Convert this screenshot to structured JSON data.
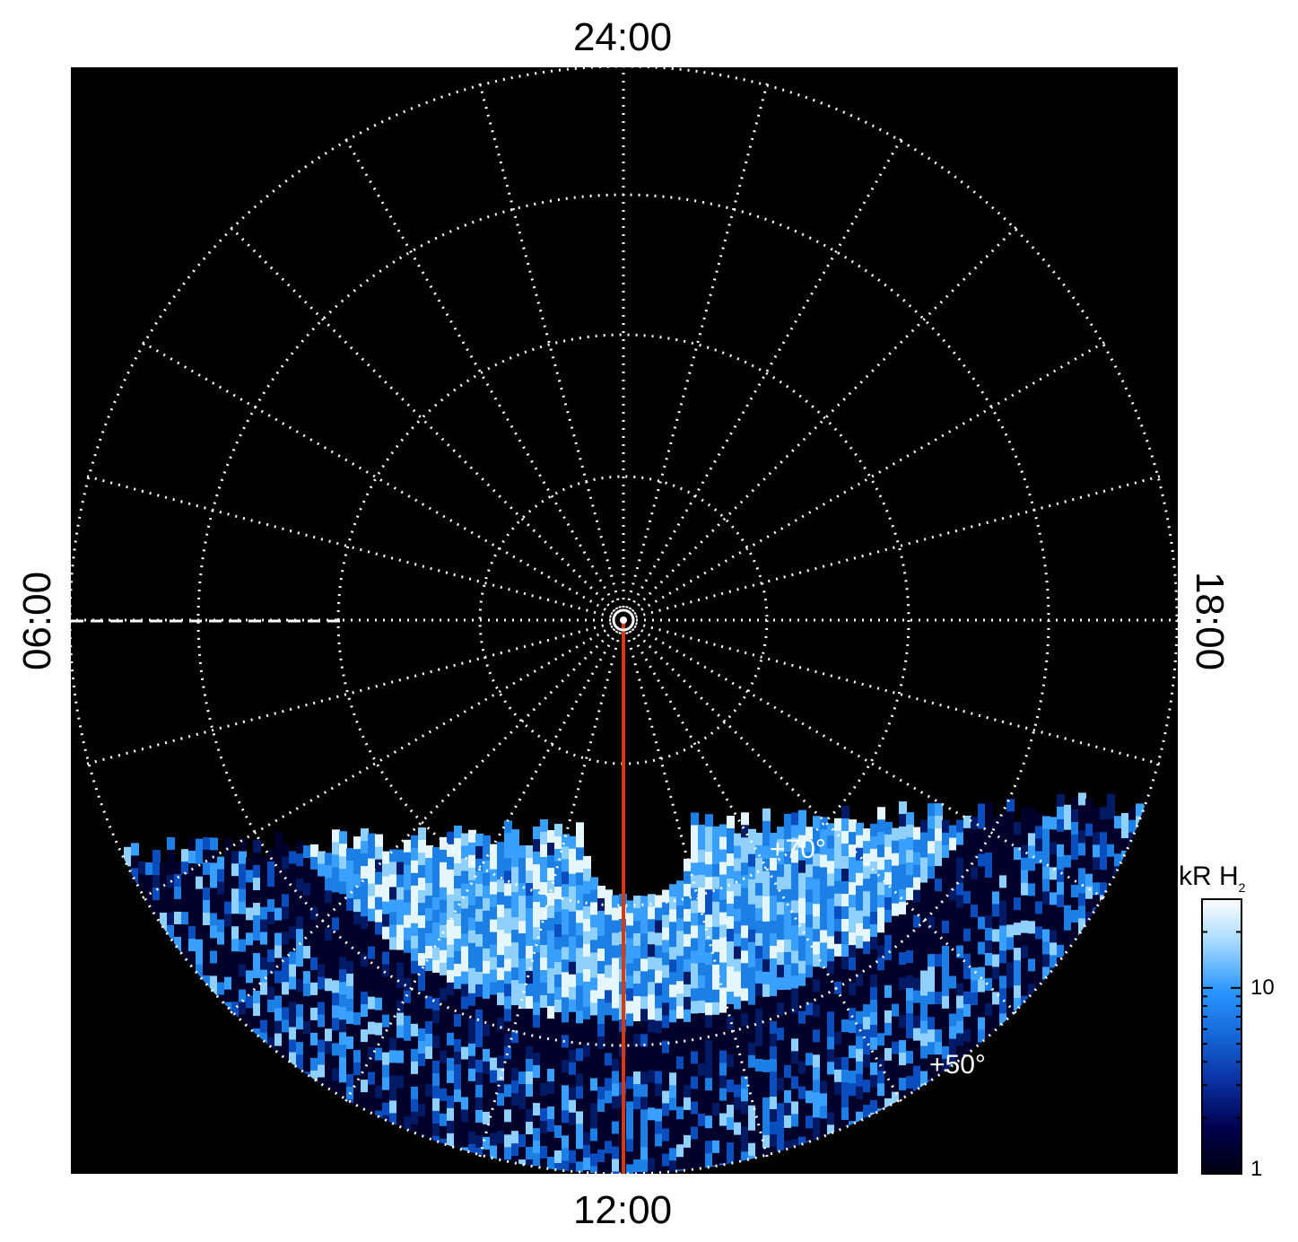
{
  "map": {
    "local_time_labels": {
      "top": "24:00",
      "bottom": "12:00",
      "left": "06:00",
      "right": "18:00"
    },
    "latitude_labels": [
      "+70°",
      "+50°"
    ],
    "background_color": "#000000",
    "grid_color": "#ffffff",
    "meridian_color": "#d63a12",
    "emission_colors": [
      "#00002a",
      "#001a66",
      "#0a4dbf",
      "#1c7fe6",
      "#3aa0ff",
      "#8fd0ff",
      "#e6f6ff"
    ]
  },
  "colorbar": {
    "title": "kR H",
    "title_subscript": "2",
    "ticks": [
      "10",
      "1"
    ],
    "scale": "log",
    "range": [
      1,
      30
    ],
    "colors": [
      "#000010",
      "#00004d",
      "#0a2fa0",
      "#1566d6",
      "#2b96ff",
      "#9fd6ff",
      "#ffffff"
    ]
  }
}
